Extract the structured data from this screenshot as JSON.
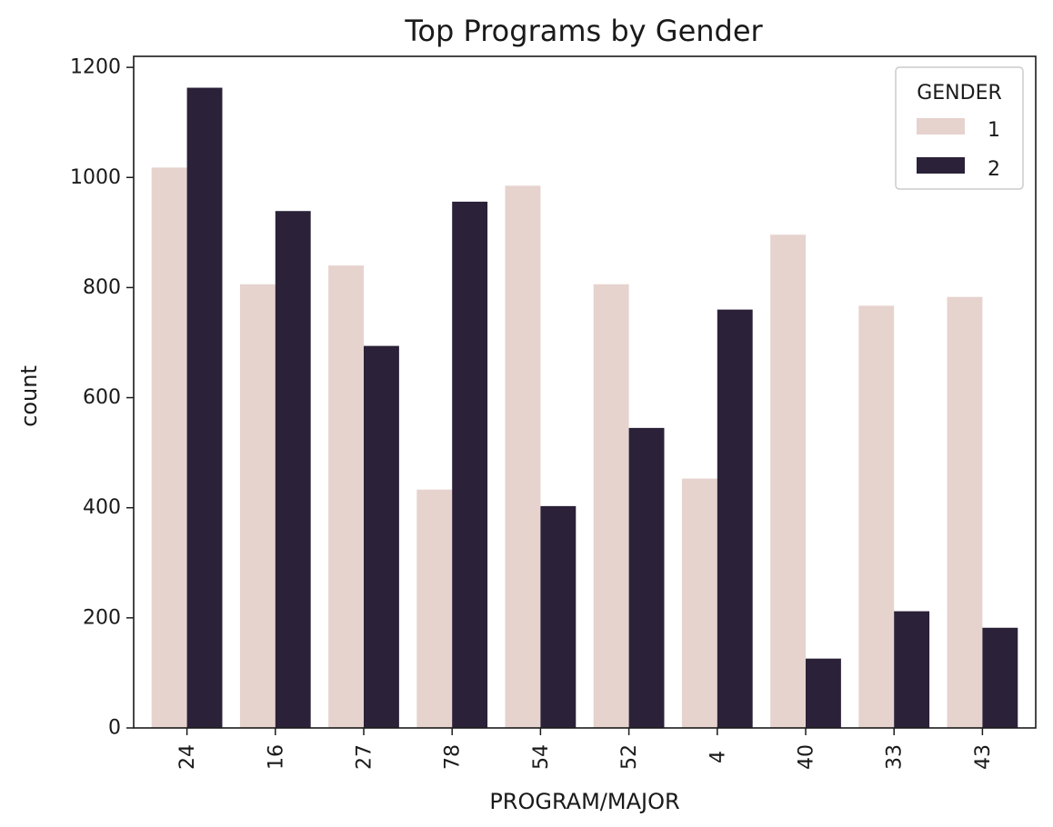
{
  "chart_data": {
    "type": "bar",
    "title": "Top Programs by Gender",
    "xlabel": "PROGRAM/MAJOR",
    "ylabel": "count",
    "categories": [
      "24",
      "16",
      "27",
      "78",
      "54",
      "52",
      "4",
      "40",
      "33",
      "43"
    ],
    "series": [
      {
        "name": "1",
        "color": "#e6d3ce",
        "values": [
          1018,
          806,
          840,
          433,
          985,
          806,
          453,
          896,
          767,
          783
        ]
      },
      {
        "name": "2",
        "color": "#2b2138",
        "values": [
          1163,
          939,
          694,
          956,
          403,
          545,
          760,
          126,
          212,
          182
        ]
      }
    ],
    "ylim": [
      0,
      1220
    ],
    "yticks": [
      0,
      200,
      400,
      600,
      800,
      1000,
      1200
    ],
    "grid": false,
    "legend": {
      "title": "GENDER",
      "placement": "top-right"
    }
  }
}
